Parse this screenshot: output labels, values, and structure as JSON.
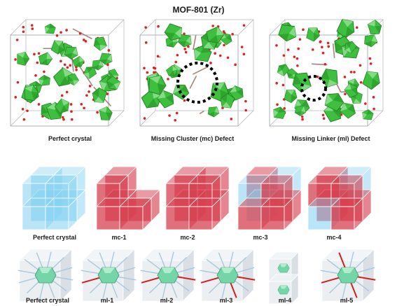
{
  "title": "MOF-801 (Zr)",
  "top_row": [
    {
      "label": "Perfect crystal"
    },
    {
      "label": "Missing Cluster (mc) Defect"
    },
    {
      "label": "Missing Linker (ml) Defect"
    }
  ],
  "middle_row": [
    {
      "label": "Perfect crystal"
    },
    {
      "label": "mc-1"
    },
    {
      "label": "mc-2"
    },
    {
      "label": "mc-3"
    },
    {
      "label": "mc-4"
    }
  ],
  "bottom_row": [
    {
      "label": "Perfect crystal"
    },
    {
      "label": "ml-1"
    },
    {
      "label": "ml-2"
    },
    {
      "label": "ml-3"
    },
    {
      "label": "ml-4"
    },
    {
      "label": "ml-5"
    }
  ],
  "colors": {
    "cluster_green": "#3fbf3f",
    "linker_red": "#d22020",
    "cube_blue": "#7fd0f0",
    "cube_red": "#d64050",
    "cube_gray": "#dde4ea",
    "node_mint": "#74d6a8"
  }
}
